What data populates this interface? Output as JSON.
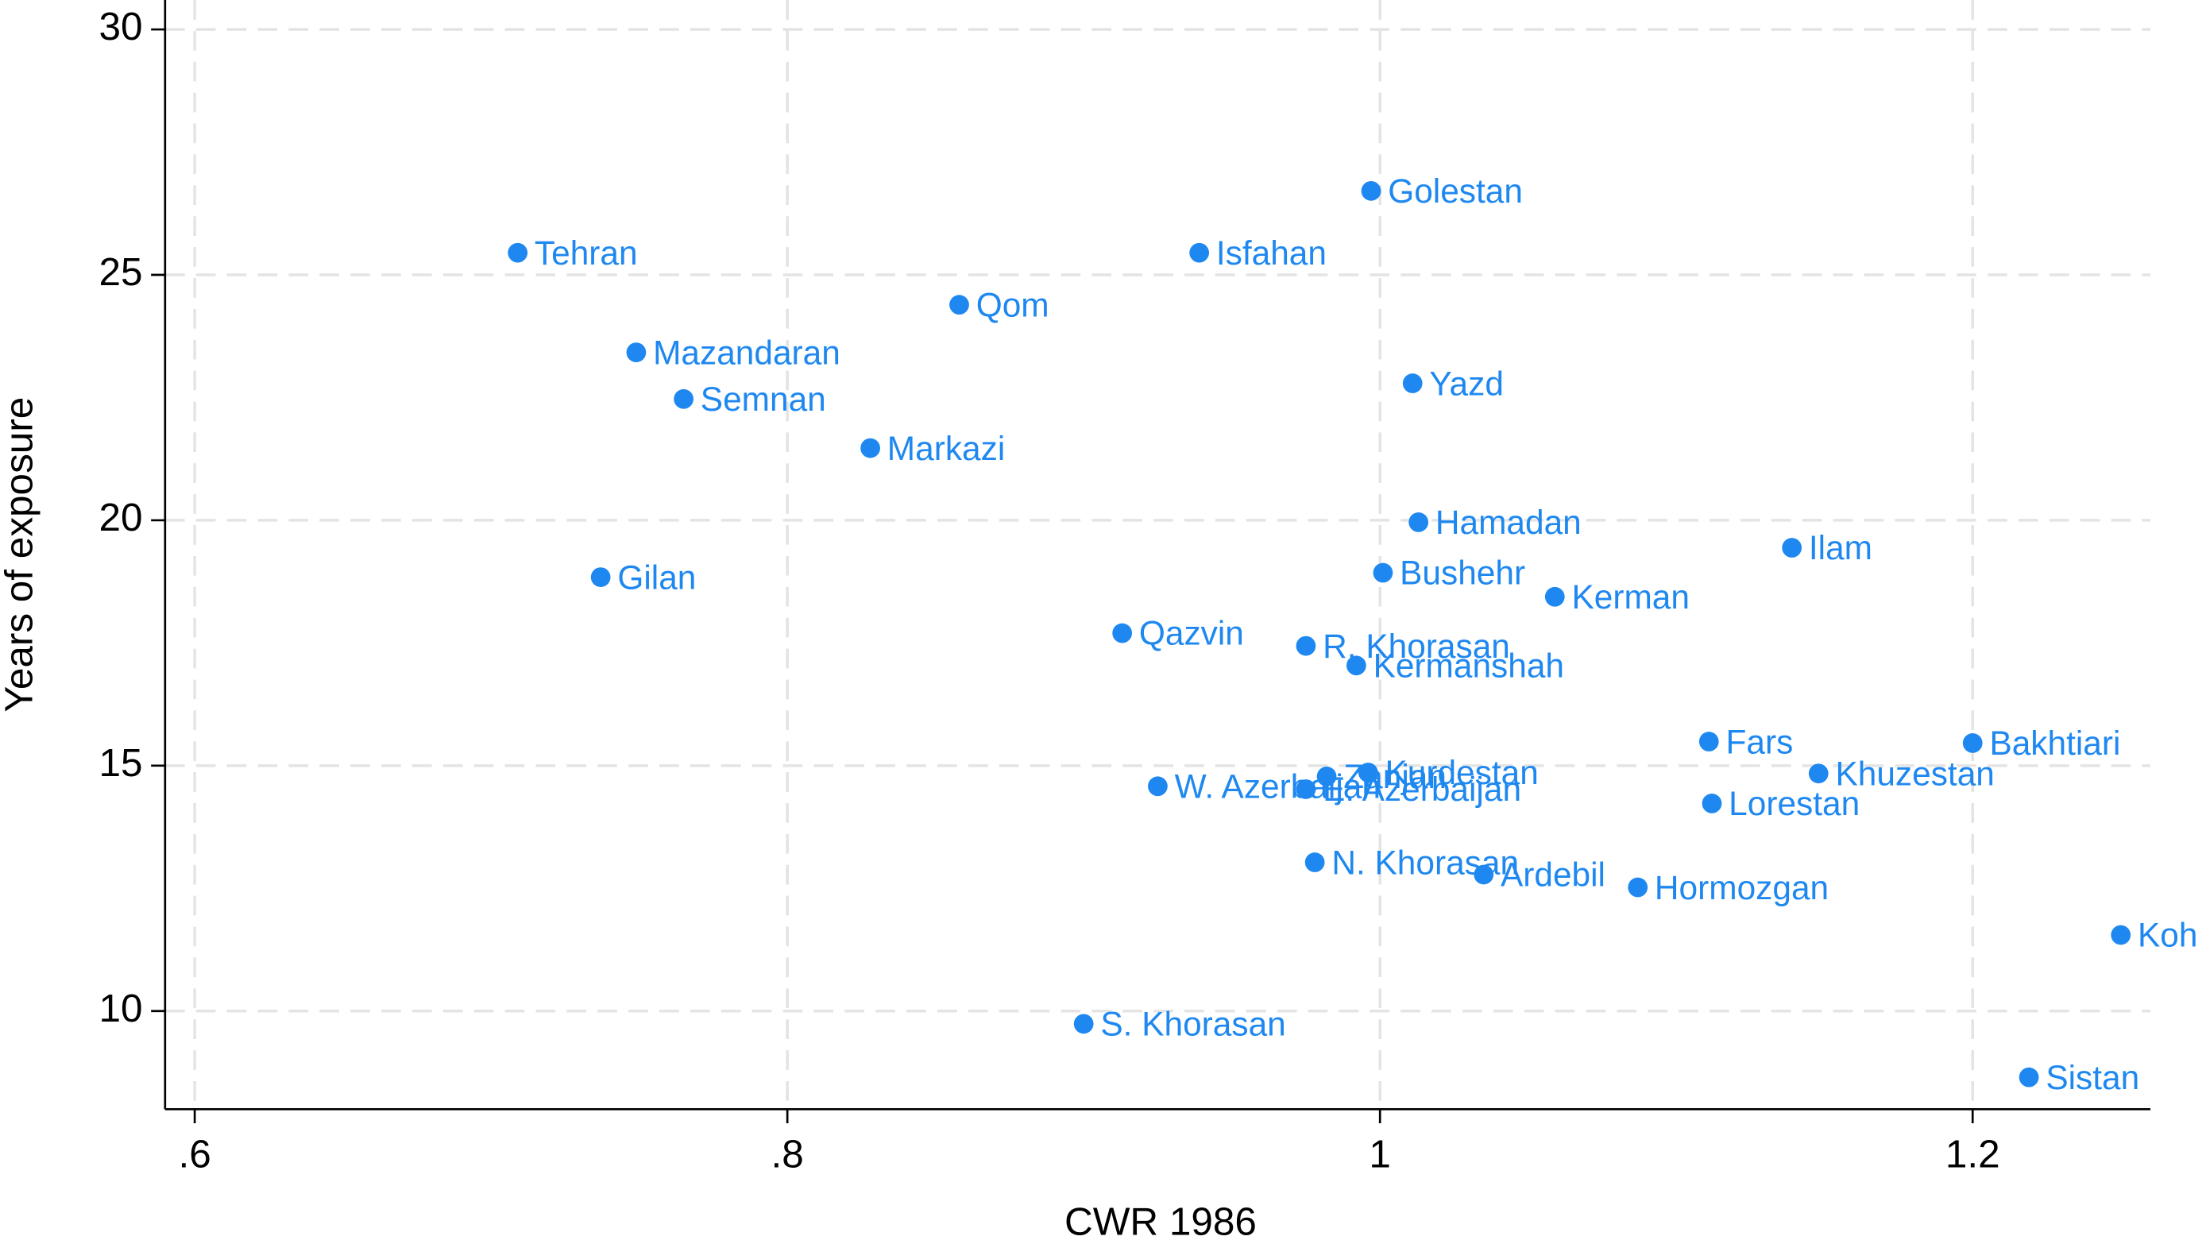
{
  "chart_data": {
    "type": "scatter",
    "x_label": "CWR 1986",
    "y_label": "Years of exposure",
    "xlim": [
      0.59,
      1.26
    ],
    "ylim": [
      8,
      30.6
    ],
    "xticks": [
      {
        "value": 0.6,
        "label": ".6"
      },
      {
        "value": 0.8,
        "label": ".8"
      },
      1,
      1.2
    ],
    "yticks": [
      10,
      15,
      20,
      25,
      30
    ],
    "grid": true,
    "color": "#1e88f0",
    "labels": [
      "Tehran",
      "Mazandaran",
      "Semnan",
      "Markazi",
      "Gilan",
      "Qom",
      "Isfahan",
      "Golestan",
      "Yazd",
      "Hamadan",
      "Bushehr",
      "Kerman",
      "Ilam",
      "Qazvin",
      "R. Khorasan",
      "Kermanshah",
      "Fars",
      "Bakhtiari",
      "Khuzestan",
      "Lorestan",
      "Kurdestan",
      "Zanjan",
      "E. Azerbaijan",
      "W. Azerbaijan",
      "N. Khorasan",
      "Ardebil",
      "Hormozgan",
      "Koh",
      "S. Khorasan",
      "Sistan"
    ],
    "x": [
      0.709,
      0.749,
      0.765,
      0.828,
      0.737,
      0.858,
      0.939,
      0.997,
      1.011,
      1.013,
      1.001,
      1.059,
      1.139,
      0.913,
      0.975,
      0.992,
      1.111,
      1.2,
      1.148,
      1.112,
      0.996,
      0.982,
      0.975,
      0.925,
      0.978,
      1.035,
      1.087,
      1.25,
      0.9,
      1.219
    ],
    "values": [
      25.45,
      23.42,
      22.47,
      21.47,
      18.84,
      24.39,
      25.45,
      26.71,
      22.79,
      19.96,
      18.93,
      18.44,
      19.44,
      17.7,
      17.44,
      17.04,
      15.49,
      15.46,
      14.84,
      14.23,
      14.86,
      14.78,
      14.52,
      14.58,
      13.03,
      12.78,
      12.52,
      11.55,
      9.74,
      8.65
    ]
  }
}
